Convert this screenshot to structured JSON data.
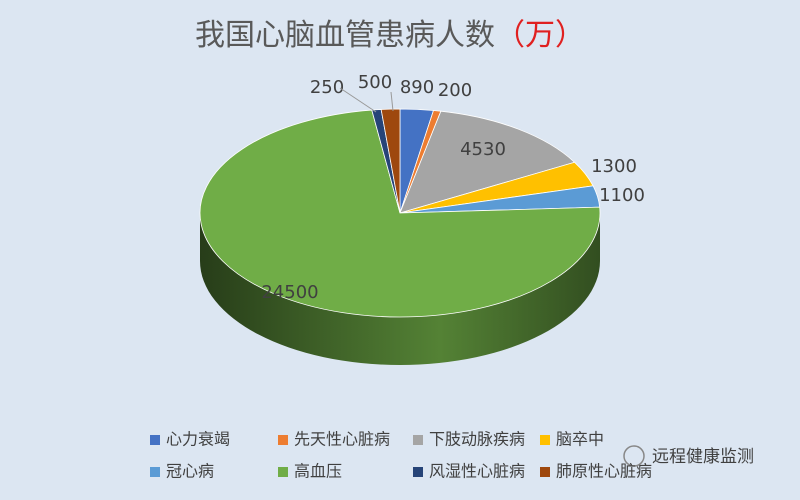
{
  "chart_data": {
    "type": "pie3d",
    "title": "我国心脑血管患病人数",
    "unit": "（万）",
    "categories": [
      "心力衰竭",
      "先天性心脏病",
      "下肢动脉疾病",
      "脑卒中",
      "冠心病",
      "高血压",
      "风湿性心脏病",
      "肺原性心脏病"
    ],
    "values": [
      890,
      200,
      4530,
      1300,
      1100,
      24500,
      250,
      500
    ],
    "colors": [
      "#4472c4",
      "#ed7d31",
      "#a5a5a5",
      "#ffc000",
      "#5b9bd5",
      "#70ad47",
      "#264478",
      "#9e480e"
    ],
    "legend": "bottom"
  },
  "watermark": "远程健康监测"
}
